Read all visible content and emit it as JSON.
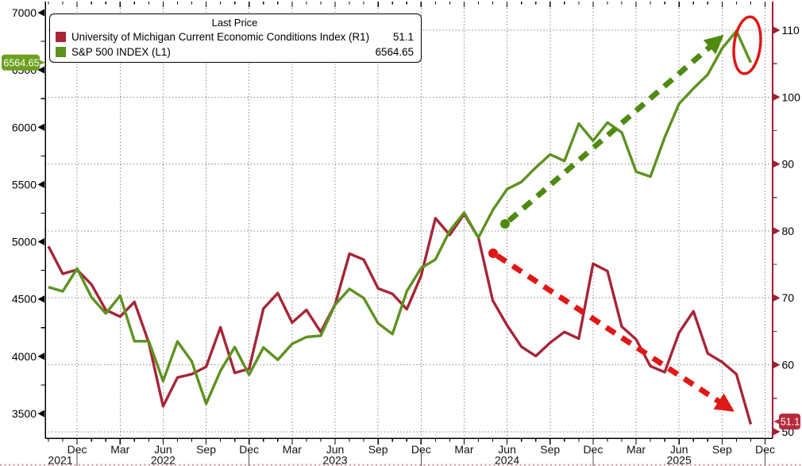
{
  "legend": {
    "title": "Last Price",
    "items": [
      {
        "label": "University of Michigan Current Economic Conditions Index (R1)",
        "value": "51.1",
        "color": "#a62638"
      },
      {
        "label": "S&P 500 INDEX (L1)",
        "value": "6564.65",
        "color": "#5d9220"
      }
    ]
  },
  "badges": {
    "left": {
      "text": "6564.65",
      "color": "#6ba01f",
      "value": 6564.65,
      "axis": "left"
    },
    "right": {
      "text": "51.1",
      "color": "#b52b3d",
      "value": 51.1,
      "axis": "right"
    }
  },
  "chart_data": {
    "type": "line",
    "title": "Last Price",
    "grid": true,
    "legend_position": "top-left",
    "x": {
      "months": [
        "2021-10",
        "2021-11",
        "2021-12",
        "2022-01",
        "2022-02",
        "2022-03",
        "2022-04",
        "2022-05",
        "2022-06",
        "2022-07",
        "2022-08",
        "2022-09",
        "2022-10",
        "2022-11",
        "2022-12",
        "2023-01",
        "2023-02",
        "2023-03",
        "2023-04",
        "2023-05",
        "2023-06",
        "2023-07",
        "2023-08",
        "2023-09",
        "2023-10",
        "2023-11",
        "2023-12",
        "2024-01",
        "2024-02",
        "2024-03",
        "2024-04",
        "2024-05",
        "2024-06",
        "2024-07",
        "2024-08",
        "2024-09",
        "2024-10",
        "2024-11",
        "2024-12",
        "2025-01",
        "2025-02",
        "2025-03",
        "2025-04",
        "2025-05",
        "2025-06",
        "2025-07",
        "2025-08",
        "2025-09",
        "2025-10",
        "2025-11"
      ],
      "quarter_labels": [
        "Dec",
        "Mar",
        "Jun",
        "Sep",
        "Dec",
        "Mar",
        "Jun",
        "Sep",
        "Dec",
        "Mar",
        "Jun",
        "Sep",
        "Dec",
        "Mar",
        "Jun",
        "Sep",
        "Dec"
      ],
      "year_labels": [
        "2021",
        "2022",
        "2023",
        "2024",
        "2025"
      ]
    },
    "left_axis": {
      "ticks": [
        7000,
        6500,
        6000,
        5500,
        5000,
        4500,
        4000,
        3500
      ],
      "minor_step": 250,
      "color": "#000000"
    },
    "right_axis": {
      "ticks": [
        110,
        100,
        90,
        80,
        70,
        60,
        50
      ],
      "minor_step": 5,
      "color": "#9b2133"
    },
    "series": [
      {
        "id": "spx",
        "name": "S&P 500 INDEX",
        "axis": "L1",
        "color": "#5d9220",
        "last_price": 6564.65,
        "values": [
          4605,
          4567,
          4766,
          4516,
          4374,
          4530,
          4132,
          4132,
          3785,
          4130,
          3955,
          3586,
          3872,
          4080,
          3840,
          4077,
          3970,
          4109,
          4169,
          4180,
          4450,
          4589,
          4508,
          4288,
          4194,
          4568,
          4770,
          4846,
          5096,
          5254,
          5036,
          5277,
          5460,
          5522,
          5648,
          5762,
          5705,
          6032,
          5882,
          6041,
          5955,
          5612,
          5569,
          5912,
          6205,
          6339,
          6460,
          6688,
          6840,
          6565
        ]
      },
      {
        "id": "umich",
        "name": "University of Michigan Current Economic Conditions Index",
        "axis": "R1",
        "color": "#a62638",
        "last_price": 51.1,
        "values": [
          77.7,
          73.6,
          74.2,
          72.0,
          68.2,
          67.2,
          69.4,
          63.3,
          53.8,
          58.1,
          58.6,
          59.7,
          65.6,
          58.8,
          59.4,
          68.4,
          70.7,
          66.3,
          68.2,
          64.9,
          69.0,
          76.6,
          75.7,
          71.4,
          70.6,
          68.3,
          73.3,
          81.9,
          79.4,
          82.5,
          79.0,
          69.6,
          65.9,
          62.7,
          61.3,
          63.3,
          64.9,
          63.9,
          75.1,
          74.0,
          65.7,
          63.8,
          59.8,
          58.9,
          64.8,
          68.0,
          61.7,
          60.4,
          58.6,
          51.1
        ]
      }
    ],
    "annotations": {
      "up_trend_arrow": {
        "style": "dashed",
        "color": "#4e8a10",
        "direction": "up-right"
      },
      "down_trend_arrow": {
        "style": "dashed",
        "color": "#e01717",
        "direction": "down-right"
      },
      "highlight_ellipse": {
        "color": "#e01717"
      }
    }
  }
}
